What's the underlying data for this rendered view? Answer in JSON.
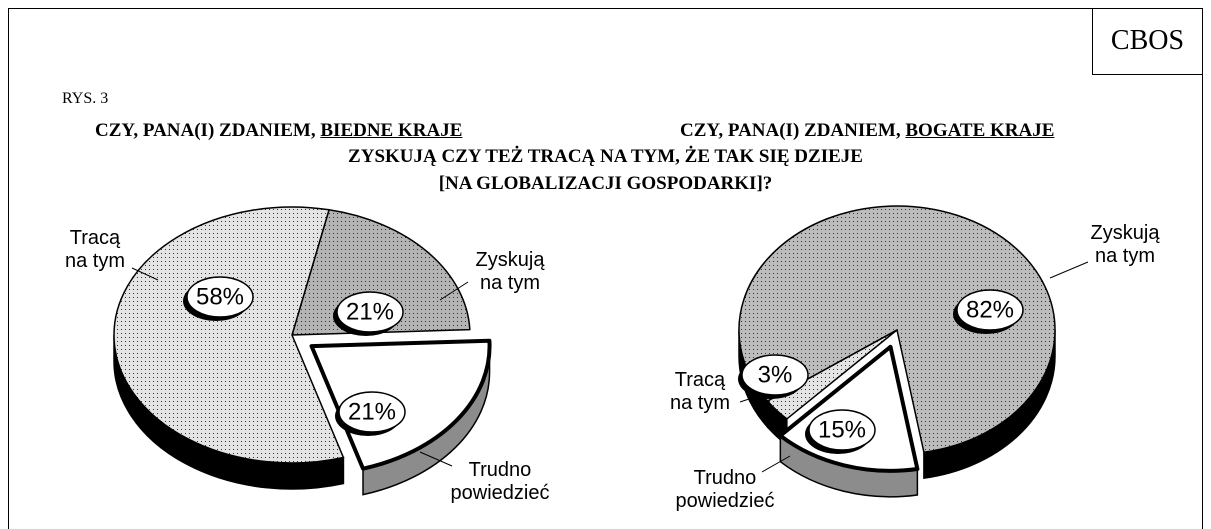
{
  "header": {
    "brand": "CBOS",
    "figure": "RYS. 3",
    "subtitle": [
      "ZYSKUJĄ CZY TEŻ TRACĄ NA TYM, ŻE TAK SIĘ DZIEJE",
      "[NA GLOBALIZACJI GOSPODARKI]?"
    ]
  },
  "chart_data": [
    {
      "type": "pie",
      "title": "CZY, PANA(I) ZDANIEM,",
      "title_underlined": "BIEDNE KRAJE",
      "categories": [
        "Zyskują na tym",
        "Trudno powiedzieć",
        "Tracą na tym"
      ],
      "values": [
        21,
        21,
        58
      ],
      "value_labels": [
        "21%",
        "21%",
        "58%"
      ],
      "colors": [
        "#b4b4b4",
        "#ffffff",
        "#e4e4e4"
      ],
      "explode": [
        false,
        true,
        false
      ]
    },
    {
      "type": "pie",
      "title": "CZY, PANA(I) ZDANIEM,",
      "title_underlined": "BOGATE KRAJE",
      "categories": [
        "Zyskują na tym",
        "Trudno powiedzieć",
        "Tracą na tym"
      ],
      "values": [
        82,
        15,
        3
      ],
      "value_labels": [
        "82%",
        "15%",
        "3%"
      ],
      "colors": [
        "#bcbcbc",
        "#ffffff",
        "#e4e4e4"
      ],
      "explode": [
        false,
        true,
        false
      ]
    }
  ]
}
